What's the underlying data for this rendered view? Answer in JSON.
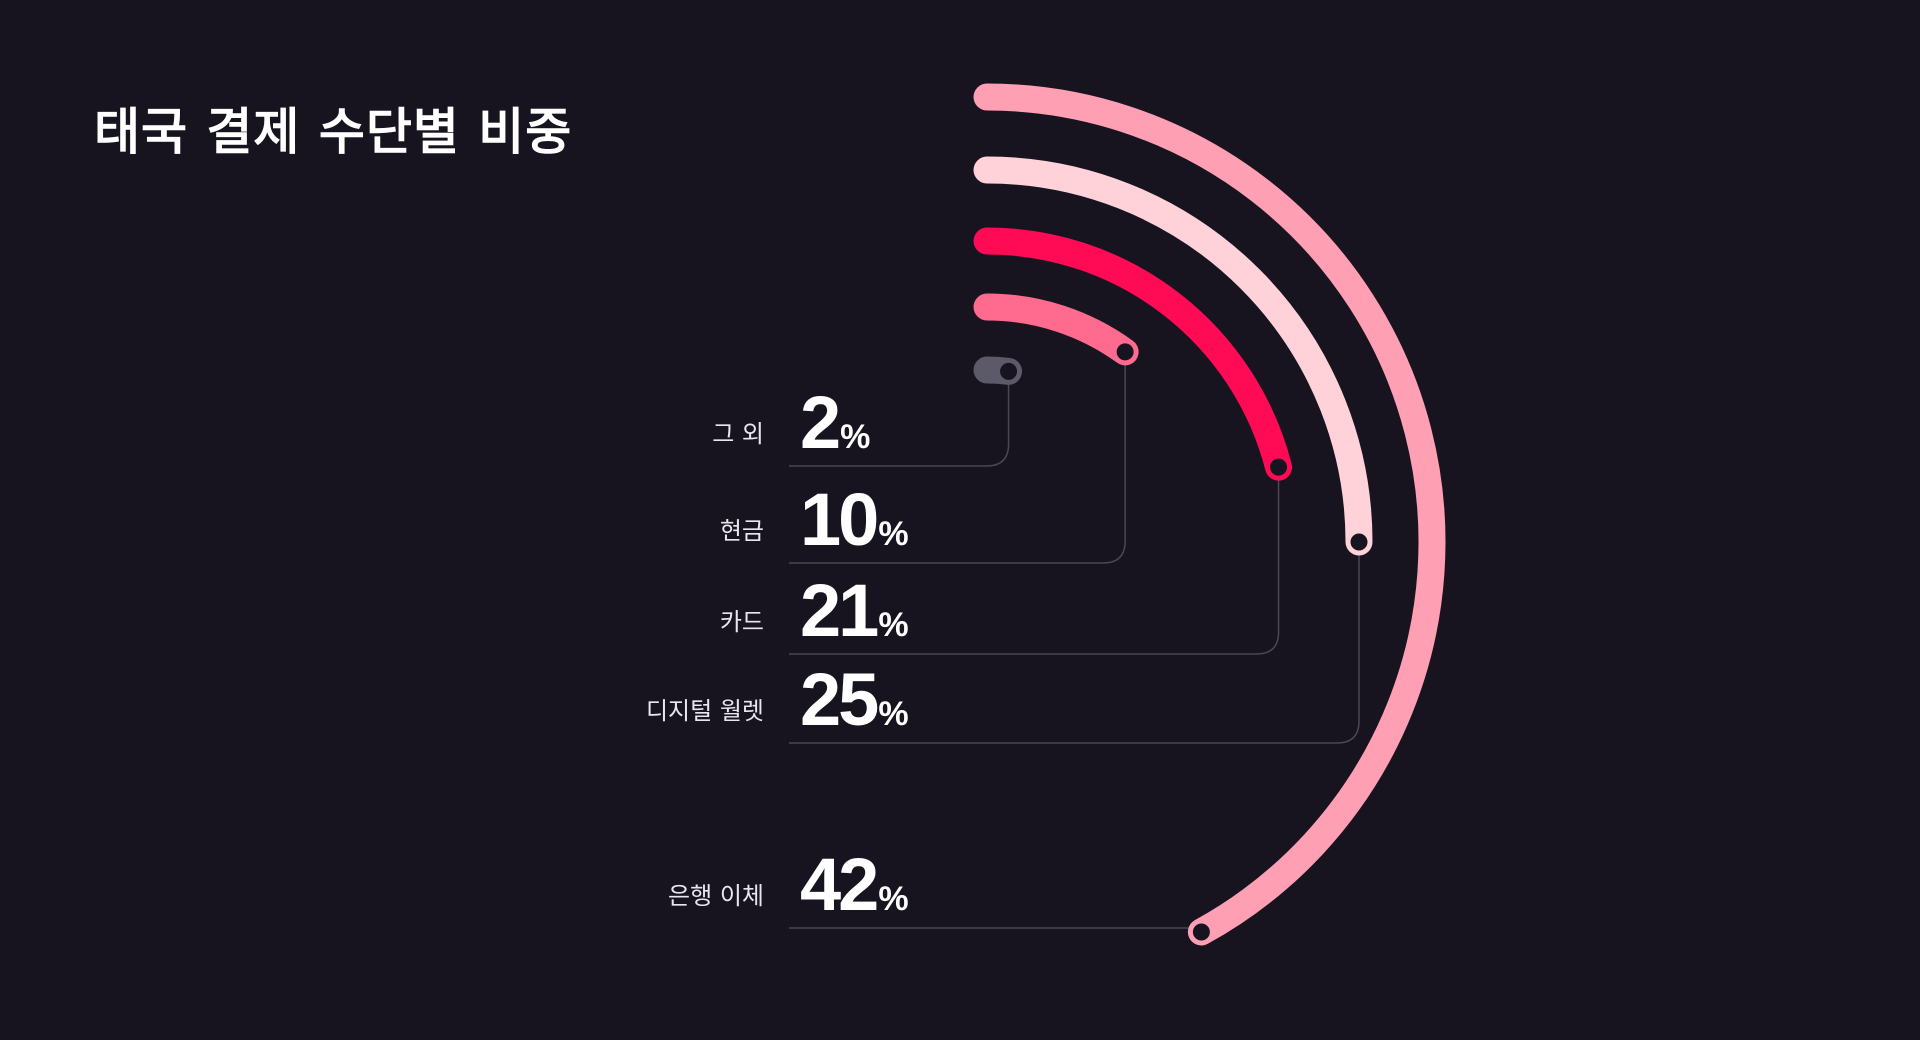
{
  "title": "태국 결제 수단별 비중",
  "chart_data": {
    "type": "radial-bar",
    "title": "태국 결제 수단별 비중",
    "unit": "%",
    "categories": [
      "그 외",
      "현금",
      "카드",
      "디지털 월렛",
      "은행 이체"
    ],
    "values": [
      2,
      10,
      21,
      25,
      42
    ],
    "colors": [
      "#5c5a68",
      "#ff6b8e",
      "#ff0a55",
      "#ffd2da",
      "#ff9fb4"
    ],
    "labels": [
      {
        "name": "그 외",
        "value": "2",
        "unit": "%"
      },
      {
        "name": "현금",
        "value": "10",
        "unit": "%"
      },
      {
        "name": "카드",
        "value": "21",
        "unit": "%"
      },
      {
        "name": "디지털 월렛",
        "value": "25",
        "unit": "%"
      },
      {
        "name": "은행 이체",
        "value": "42",
        "unit": "%"
      }
    ]
  }
}
